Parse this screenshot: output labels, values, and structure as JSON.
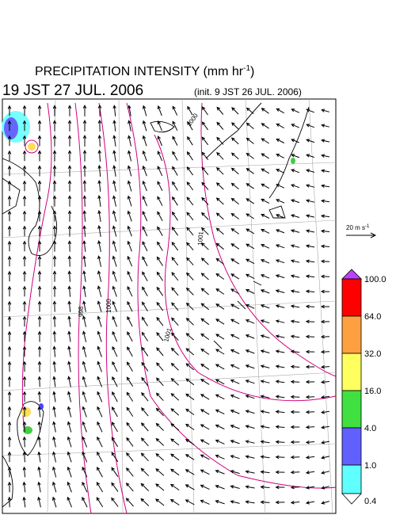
{
  "title": {
    "main": "PRECIPITATION INTENSITY (mm hr",
    "sup": "-1",
    "close": ")"
  },
  "valid_time": "19 JST 27 JUL. 2006",
  "init_time": "(init. 9 JST 26 JUL. 2006)",
  "wind_scale": {
    "text": "20 m s",
    "sup": "-1"
  },
  "colorbar": {
    "labels": [
      "100.0",
      "64.0",
      "32.0",
      "16.0",
      "4.0",
      "1.0",
      "0.4"
    ]
  },
  "contour_labels": [
    "1000",
    "1001",
    "998",
    "1000",
    "1001"
  ]
}
